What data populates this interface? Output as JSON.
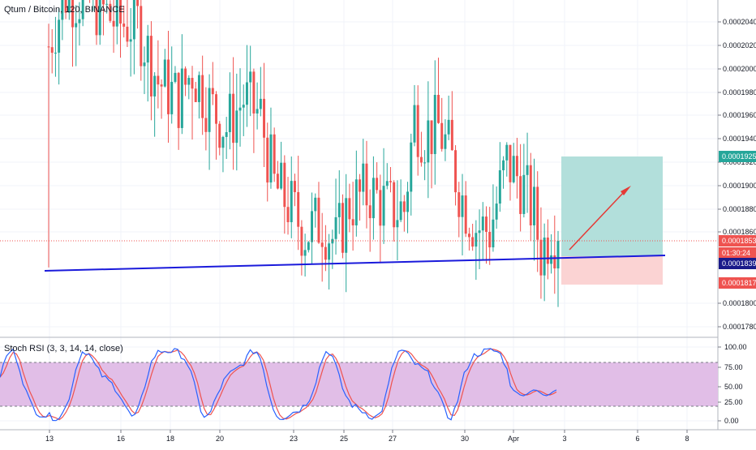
{
  "symbol_title": "Qtum / Bitcoin, 120, BINANCE",
  "indicator_title": "Stoch RSI (3, 3, 14, 14, close)",
  "colors": {
    "up": "#26a69a",
    "down": "#ef5350",
    "trendline": "#1a1adb",
    "target_zone": "#b2dfdb",
    "stop_zone": "#fbd3d3",
    "arrow": "#e53935",
    "k_line": "#2962ff",
    "d_line": "#ef5350",
    "rsi_band": "#e1bee7",
    "price_line": "#ef5350"
  },
  "price_axis": {
    "ticks": [
      "0.0002040",
      "0.0002020",
      "0.0002000",
      "0.0001980",
      "0.0001960",
      "0.0001940",
      "0.0001920",
      "0.0001900",
      "0.0001880",
      "0.0001860",
      "0.0001800",
      "0.0001780"
    ],
    "labels": [
      {
        "text": "0.0001925",
        "color": "#26a69a"
      },
      {
        "text": "0.0001853",
        "color": "#ef5350"
      },
      {
        "text": "01:30:24",
        "color": "#ef5350"
      },
      {
        "text": "0.0001839",
        "color": "#1a1a8a"
      },
      {
        "text": "0.0001817",
        "color": "#ef5350"
      }
    ]
  },
  "rsi_axis": {
    "ticks": [
      "100.00",
      "75.00",
      "50.00",
      "25.00",
      "0.00"
    ]
  },
  "time_axis": {
    "labels": [
      "13",
      "16",
      "18",
      "20",
      "23",
      "25",
      "27",
      "30",
      "Apr",
      "3",
      "6",
      "8"
    ]
  },
  "chart_data": [
    {
      "type": "candlestick",
      "title": "Qtum / Bitcoin, 120, BINANCE",
      "ylim": [
        0.000177,
        0.000206
      ],
      "candles_count": 150,
      "last_price": 0.0001853,
      "trendline": {
        "from": 0.0001828,
        "to": 0.0001841
      },
      "long_position": {
        "target": 0.0001925,
        "entry": 0.0001839,
        "stop": 0.0001817
      }
    },
    {
      "type": "line",
      "title": "Stoch RSI (3, 3, 14, 14, close)",
      "ylim": [
        -10,
        105
      ],
      "bands": [
        20,
        80
      ],
      "series": [
        {
          "values": []
        },
        {
          "values": []
        }
      ]
    }
  ]
}
